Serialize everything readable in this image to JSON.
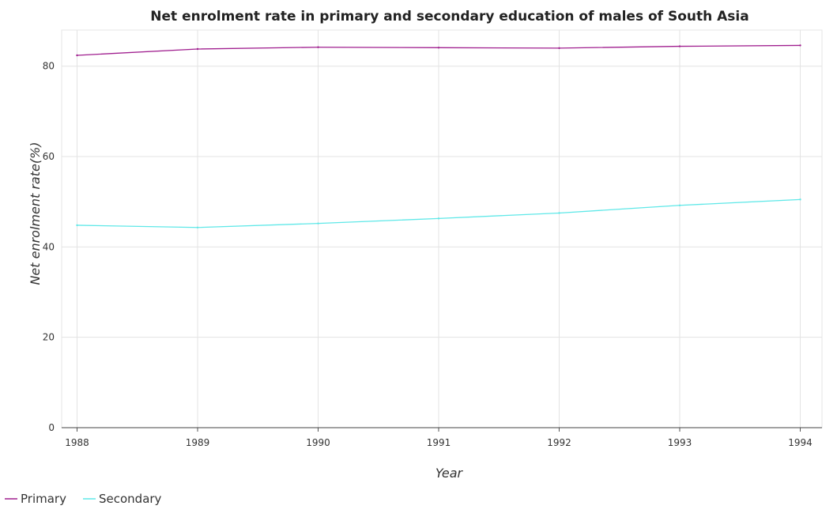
{
  "chart_data": {
    "type": "line",
    "title": "Net enrolment rate in primary and secondary education of males of South Asia",
    "xlabel": "Year",
    "ylabel": "Net enrolment rate(%)",
    "x": [
      "1988",
      "1989",
      "1990",
      "1991",
      "1992",
      "1993",
      "1994"
    ],
    "y_ticks": [
      "0",
      "20",
      "40",
      "60",
      "80"
    ],
    "ylim": [
      0,
      88
    ],
    "grid": true,
    "legend_position": "bottom-left",
    "series": [
      {
        "name": "Primary",
        "color": "#a01f8f",
        "values": [
          82.4,
          83.8,
          84.2,
          84.1,
          84.0,
          84.4,
          84.6
        ]
      },
      {
        "name": "Secondary",
        "color": "#5fe8e8",
        "values": [
          44.8,
          44.3,
          45.2,
          46.3,
          47.5,
          49.2,
          50.5
        ]
      }
    ]
  }
}
